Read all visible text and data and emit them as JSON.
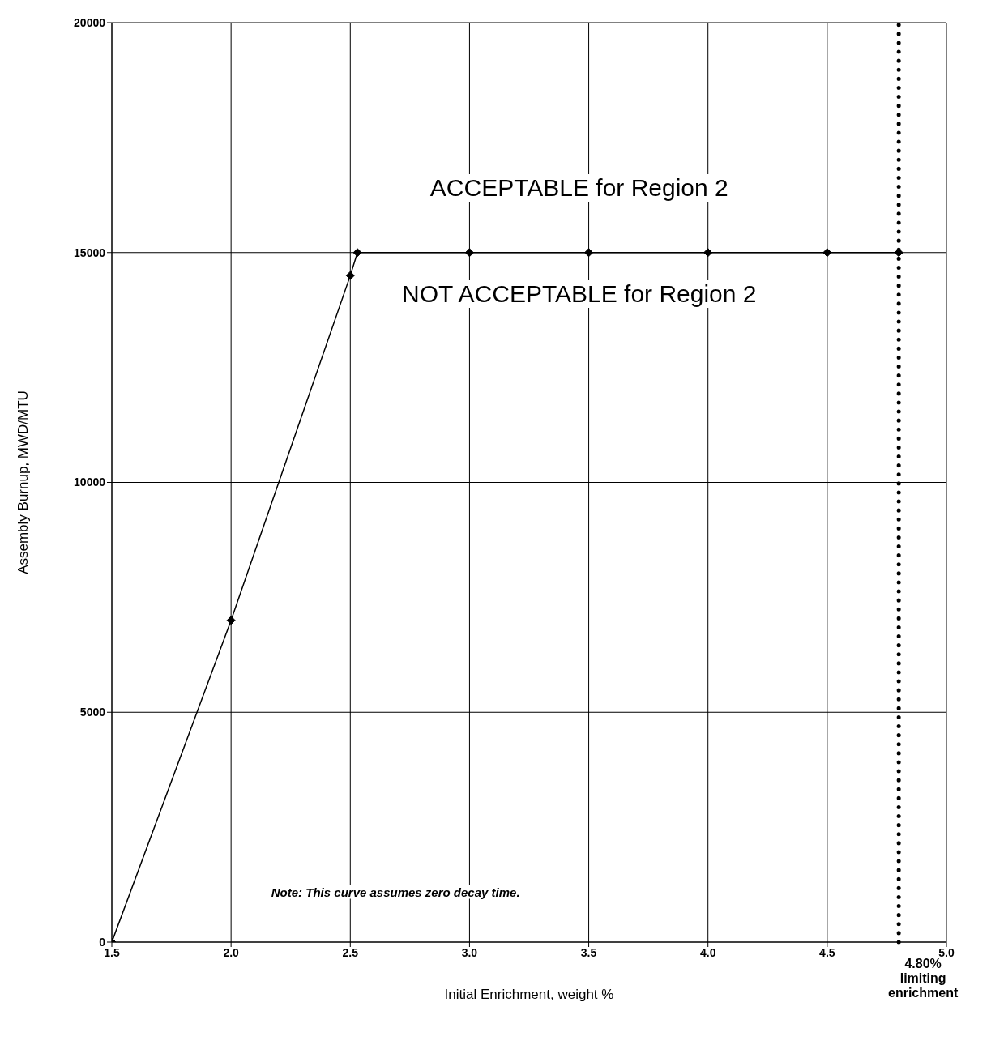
{
  "chart_data": {
    "type": "line",
    "xlabel": "Initial Enrichment, weight %",
    "ylabel": "Assembly Burnup, MWD/MTU",
    "x": [
      1.5,
      2.0,
      2.5,
      2.53,
      3.0,
      3.5,
      4.0,
      4.5,
      4.8
    ],
    "series": [
      {
        "color": "#000000",
        "values": [
          0,
          7000,
          14500,
          15000,
          15000,
          15000,
          15000,
          15000,
          15000
        ]
      }
    ],
    "xlim": [
      1.5,
      5
    ],
    "xticks": [
      {
        "value": 1.5,
        "label": "1.5"
      },
      {
        "value": 2,
        "label": "2.0"
      },
      {
        "value": 2.5,
        "label": "2.5"
      },
      {
        "value": 3,
        "label": "3.0"
      },
      {
        "value": 3.5,
        "label": "3.5"
      },
      {
        "value": 4,
        "label": "4.0"
      },
      {
        "value": 4.5,
        "label": "4.5"
      },
      {
        "value": 5,
        "label": "5.0"
      }
    ],
    "ylim": [
      0,
      20000
    ],
    "yticks": [
      0,
      5000,
      10000,
      15000,
      20000
    ],
    "grid": true,
    "marker": "diamond",
    "line_style": "solid",
    "ref_lines": [
      {
        "axis": "x",
        "value": 4.8,
        "label": "4.80% limiting enrichment",
        "line_style": "dotted",
        "color": "#000000"
      }
    ],
    "annotations": [
      "ACCEPTABLE for Region 2",
      "NOT ACCEPTABLE for Region 2",
      "Note: This curve assumes zero decay time."
    ]
  }
}
